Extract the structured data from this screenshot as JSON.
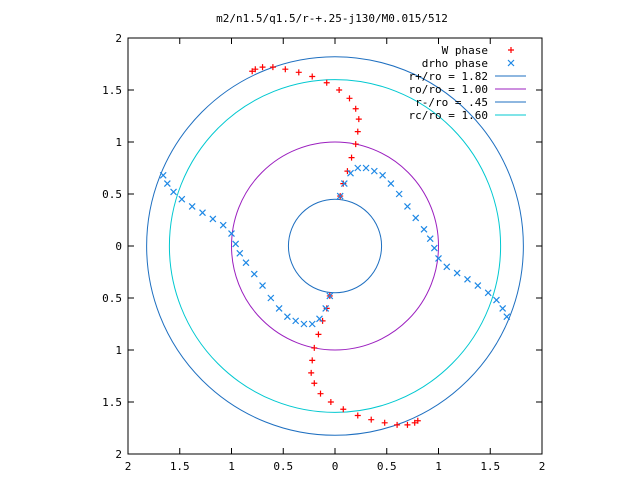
{
  "chart_data": {
    "type": "scatter",
    "title": "m2/n1.5/q1.5/r-+.25-j130/M0.015/512",
    "xlabel": "",
    "ylabel": "",
    "xlim": [
      -2,
      2
    ],
    "ylim": [
      -2,
      2
    ],
    "x_ticks": [
      "2",
      "1.5",
      "1",
      "0.5",
      "0",
      "0.5",
      "1",
      "1.5",
      "2"
    ],
    "y_ticks": [
      "2",
      "1.5",
      "1",
      "0.5",
      "0",
      "0.5",
      "1",
      "1.5",
      "2"
    ],
    "x_tick_values": [
      -2,
      -1.5,
      -1,
      -0.5,
      0,
      0.5,
      1,
      1.5,
      2
    ],
    "y_tick_values": [
      2,
      1.5,
      1,
      0.5,
      0,
      -0.5,
      -1,
      -1.5,
      -2
    ],
    "grid": false,
    "legend_position": "top-right",
    "series": [
      {
        "name": "W phase",
        "kind": "points",
        "marker": "plus",
        "color": "#ff0000",
        "x": [
          0.05,
          0.08,
          0.12,
          0.16,
          0.2,
          0.22,
          0.23,
          0.2,
          0.14,
          0.04,
          -0.08,
          -0.22,
          -0.35,
          -0.48,
          -0.6,
          -0.7,
          -0.77,
          -0.8,
          -0.05,
          -0.08,
          -0.12,
          -0.16,
          -0.2,
          -0.22,
          -0.23,
          -0.2,
          -0.14,
          -0.04,
          0.08,
          0.22,
          0.35,
          0.48,
          0.6,
          0.7,
          0.77,
          0.8
        ],
        "y": [
          0.48,
          0.6,
          0.72,
          0.85,
          0.98,
          1.1,
          1.22,
          1.32,
          1.42,
          1.5,
          1.57,
          1.63,
          1.67,
          1.7,
          1.72,
          1.72,
          1.7,
          1.68,
          -0.48,
          -0.6,
          -0.72,
          -0.85,
          -0.98,
          -1.1,
          -1.22,
          -1.32,
          -1.42,
          -1.5,
          -1.57,
          -1.63,
          -1.67,
          -1.7,
          -1.72,
          -1.72,
          -1.7,
          -1.68
        ]
      },
      {
        "name": "drho phase",
        "kind": "points",
        "marker": "cross",
        "color": "#1e88e5",
        "x": [
          0.05,
          0.09,
          0.15,
          0.22,
          0.3,
          0.38,
          0.46,
          0.54,
          0.62,
          0.7,
          0.78,
          0.86,
          0.92,
          0.96,
          1.0,
          1.08,
          1.18,
          1.28,
          1.38,
          1.48,
          1.56,
          1.62,
          1.66,
          -0.05,
          -0.09,
          -0.15,
          -0.22,
          -0.3,
          -0.38,
          -0.46,
          -0.54,
          -0.62,
          -0.7,
          -0.78,
          -0.86,
          -0.92,
          -0.96,
          -1.0,
          -1.08,
          -1.18,
          -1.28,
          -1.38,
          -1.48,
          -1.56,
          -1.62,
          -1.66
        ],
        "y": [
          0.48,
          0.6,
          0.7,
          0.75,
          0.75,
          0.72,
          0.68,
          0.6,
          0.5,
          0.38,
          0.27,
          0.16,
          0.07,
          -0.02,
          -0.12,
          -0.2,
          -0.26,
          -0.32,
          -0.38,
          -0.45,
          -0.52,
          -0.6,
          -0.68,
          -0.48,
          -0.6,
          -0.7,
          -0.75,
          -0.75,
          -0.72,
          -0.68,
          -0.6,
          -0.5,
          -0.38,
          -0.27,
          -0.16,
          -0.07,
          0.02,
          0.12,
          0.2,
          0.26,
          0.32,
          0.38,
          0.45,
          0.52,
          0.6,
          0.68
        ]
      },
      {
        "name": "r+/ro = 1.82",
        "kind": "circle",
        "radius": 1.82,
        "color": "#1e6fc0"
      },
      {
        "name": "ro/ro = 1.00",
        "kind": "circle",
        "radius": 1.0,
        "color": "#9b1fbf"
      },
      {
        "name": "r-/ro = .45",
        "kind": "circle",
        "radius": 0.45,
        "color": "#1e6fc0"
      },
      {
        "name": "rc/ro = 1.60",
        "kind": "circle",
        "radius": 1.6,
        "color": "#00c8d0"
      }
    ]
  }
}
